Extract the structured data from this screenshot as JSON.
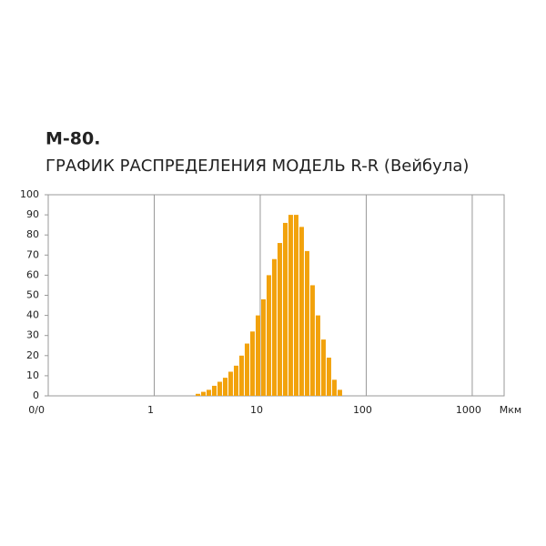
{
  "chart_data": {
    "type": "histogram",
    "title": "М-80.",
    "subtitle": "ГРАФИК РАСПРЕДЕЛЕНИЯ МОДЕЛЬ R-R (Вейбула)",
    "x_label": "Мкм",
    "xscale": "log",
    "grid": "x",
    "color": "#f2a20c",
    "bins": [
      2.434,
      2.74,
      3.085,
      3.473,
      3.911,
      4.403,
      4.957,
      5.581,
      6.284,
      7.075,
      7.966,
      8.969,
      10.1,
      11.37,
      12.8,
      14.41,
      16.23,
      18.27,
      20.57,
      23.16,
      26.08,
      29.36,
      33.06,
      37.22,
      41.91,
      47.18,
      53.12,
      59.81
    ],
    "values": [
      1,
      2,
      3,
      5,
      7,
      9,
      12,
      15,
      20,
      26,
      32,
      40,
      48,
      60,
      68,
      76,
      86,
      90,
      90,
      84,
      72,
      55,
      40,
      28,
      19,
      8,
      3
    ],
    "xlim": [
      0.1,
      2000
    ],
    "xticks": [
      {
        "value": 0.1,
        "label": "0/0"
      },
      1,
      10,
      100,
      1000
    ],
    "ylim": [
      0,
      100
    ],
    "yticks": [
      0,
      10,
      20,
      30,
      40,
      50,
      60,
      70,
      80,
      90,
      100
    ]
  }
}
